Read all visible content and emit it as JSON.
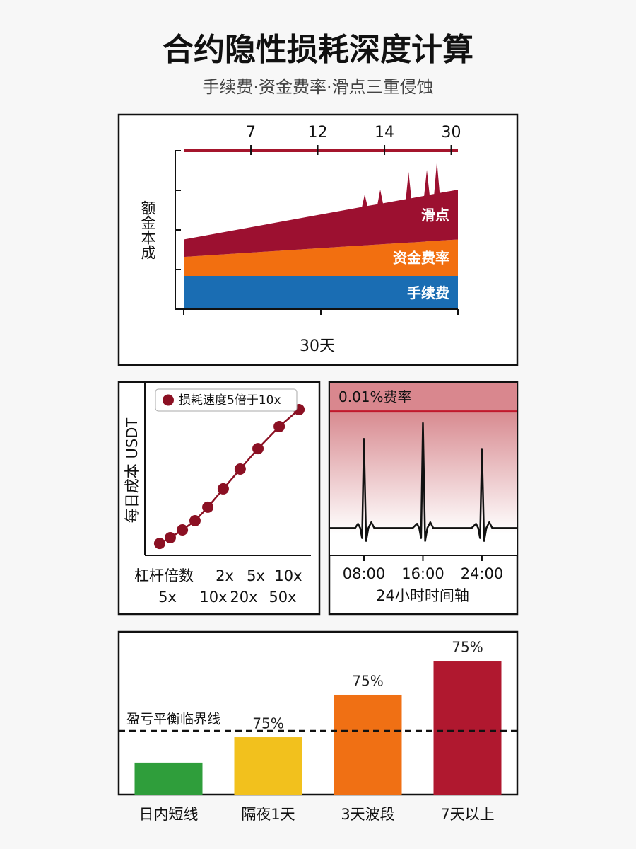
{
  "header": {
    "title": "合约隐性损耗深度计算",
    "subtitle": "手续费·资金费率·滑点三重侵蚀"
  },
  "chart_data": [
    {
      "type": "area",
      "stacked": true,
      "top_axis_labels": [
        "7",
        "12",
        "14",
        "30"
      ],
      "x_label": "30天",
      "y_label": "额金本成",
      "xlim": [
        0,
        30
      ],
      "ylim": [
        0,
        100
      ],
      "x": [
        0,
        19.5,
        19.8,
        20.1,
        21.2,
        21.5,
        21.8,
        24.3,
        24.6,
        24.9,
        26.3,
        26.6,
        26.9,
        27.4,
        27.7,
        28,
        30
      ],
      "series": [
        {
          "name": "手续费",
          "color": "#1a6db3",
          "values": [
            21,
            21,
            21,
            21,
            21,
            21,
            21,
            21,
            21,
            21,
            21,
            21,
            21,
            21,
            21,
            21,
            21
          ]
        },
        {
          "name": "资金费率",
          "color": "#f26f10",
          "values": [
            12,
            19.2,
            19.3,
            19.4,
            19.8,
            19.9,
            20,
            20.9,
            21,
            21.1,
            21.6,
            21.8,
            21.9,
            22.1,
            22.2,
            22.3,
            23
          ]
        },
        {
          "name": "滑点",
          "color": "#9c1030",
          "values": [
            11,
            24.3,
            32,
            24.7,
            25.4,
            34.5,
            25.8,
            27.5,
            44.6,
            27.9,
            28.9,
            45.1,
            29.3,
            29.6,
            50.1,
            30,
            31.4
          ]
        }
      ]
    },
    {
      "type": "scatter",
      "connect": true,
      "legend": "top-left",
      "y_label": "每日成本 USDT",
      "x_labels_row1": [
        "杠杆倍数",
        "2x",
        "5x",
        "10x"
      ],
      "x_labels_row2": [
        "5x",
        "10x",
        "20x",
        "50x"
      ],
      "xlim": [
        0,
        100
      ],
      "ylim": [
        0,
        100
      ],
      "x": [
        8.9,
        15.3,
        22.6,
        30.2,
        37.9,
        47.2,
        57.4,
        68.1,
        80.9,
        92.8
      ],
      "series": [
        {
          "name": "损耗速度5倍于10x",
          "color": "#8b1023",
          "values": [
            6.9,
            10.2,
            14.7,
            20,
            27.8,
            38.4,
            49.8,
            61.6,
            74.3,
            84.1
          ]
        }
      ]
    },
    {
      "type": "line",
      "color": "#111111",
      "x_label": "24小时时间轴",
      "xlim": [
        3.4,
        28.7
      ],
      "ylim": [
        0,
        120
      ],
      "xticks": [
        {
          "value": 8,
          "label": "08:00"
        },
        {
          "value": 16,
          "label": "16:00"
        },
        {
          "value": 24,
          "label": "24:00"
        }
      ],
      "threshold": {
        "value": 100,
        "label": "0.01%费率",
        "color": "#c0182c"
      },
      "x": [
        3.4,
        6.8,
        7.2,
        7.5,
        7.75,
        8,
        8.3,
        8.6,
        9,
        9.4,
        14.6,
        15.2,
        15.5,
        15.75,
        16,
        16.3,
        16.6,
        17,
        17.4,
        22.6,
        23.2,
        23.5,
        23.75,
        24,
        24.3,
        24.6,
        25,
        25.4,
        28.7
      ],
      "values": [
        19,
        19,
        22,
        19,
        12,
        81,
        10,
        19,
        23,
        19,
        19,
        22,
        19,
        12,
        92,
        10,
        19,
        23,
        19,
        19,
        22,
        19,
        12,
        74,
        10,
        19,
        23,
        19,
        19
      ]
    },
    {
      "type": "bar",
      "categories": [
        "日内短线",
        "隔夜1天",
        "3天波段",
        "7天以上"
      ],
      "values": [
        20.5,
        36.8,
        64.1,
        85.9
      ],
      "colors": [
        "#2f9e3b",
        "#f2c11d",
        "#f07014",
        "#b0182f"
      ],
      "bar_annotations": [
        null,
        "75%",
        "75%",
        "75%"
      ],
      "ylim": [
        0,
        100
      ],
      "reference_line": {
        "value": 40.9,
        "label": "盈亏平衡临界线"
      }
    }
  ]
}
